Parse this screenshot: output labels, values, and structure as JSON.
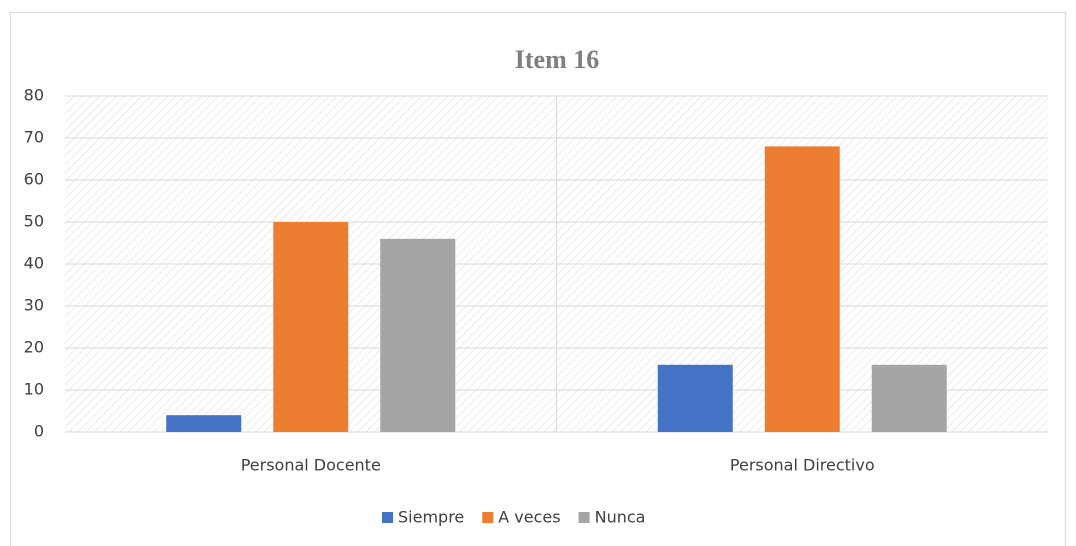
{
  "chart_data": {
    "type": "bar",
    "title": "Item 16",
    "categories": [
      "Personal Docente",
      "Personal Directivo"
    ],
    "series": [
      {
        "name": "Siempre",
        "color": "#4472c4",
        "values": [
          4,
          16
        ]
      },
      {
        "name": "A veces",
        "color": "#ed7d31",
        "values": [
          50,
          68
        ]
      },
      {
        "name": "Nunca",
        "color": "#a5a5a5",
        "values": [
          46,
          16
        ]
      }
    ],
    "ylim": [
      0,
      80
    ],
    "yticks": [
      0,
      10,
      20,
      30,
      40,
      50,
      60,
      70,
      80
    ],
    "grid": true,
    "legend": "bottom"
  }
}
